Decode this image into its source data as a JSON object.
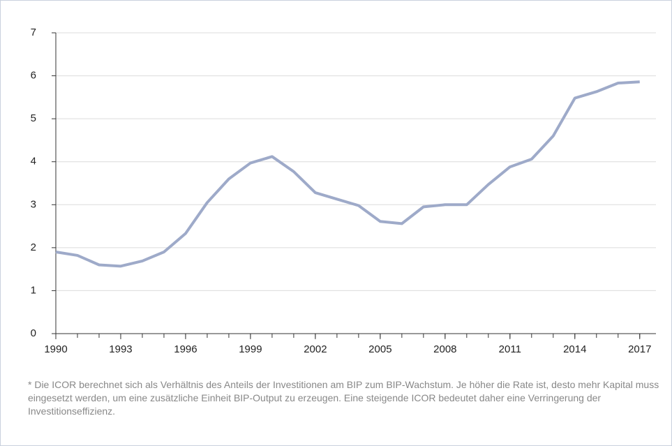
{
  "chart_data": {
    "type": "line",
    "x": [
      1990,
      1991,
      1992,
      1993,
      1994,
      1995,
      1996,
      1997,
      1998,
      1999,
      2000,
      2001,
      2002,
      2003,
      2004,
      2005,
      2006,
      2007,
      2008,
      2009,
      2010,
      2011,
      2012,
      2013,
      2014,
      2015,
      2016,
      2017
    ],
    "series": [
      {
        "color": "#9eaac9",
        "values": [
          1.9,
          1.82,
          1.6,
          1.57,
          1.69,
          1.9,
          2.33,
          3.05,
          3.6,
          3.97,
          4.12,
          3.77,
          3.28,
          3.13,
          2.98,
          2.61,
          2.56,
          2.95,
          3.0,
          3.0,
          3.47,
          3.88,
          4.06,
          4.6,
          5.48,
          5.63,
          5.83,
          5.86
        ]
      }
    ],
    "xlim": [
      1990,
      2017.75
    ],
    "xticks": [
      1990,
      1993,
      1996,
      1999,
      2002,
      2005,
      2008,
      2011,
      2014,
      2017
    ],
    "ylim": [
      0,
      7
    ],
    "yticks": [
      0,
      1,
      2,
      3,
      4,
      5,
      6,
      7
    ],
    "grid": true,
    "footnote": "* Die ICOR berechnet sich als Verhältnis des Anteils der Investitionen am BIP zum BIP-Wachstum. Je höher die Rate ist, desto mehr Kapital muss eingesetzt werden, um eine zusätzliche Einheit BIP-Output zu erzeugen. Eine steigende ICOR bedeutet daher eine Verringerung der Investitionseffizienz."
  }
}
